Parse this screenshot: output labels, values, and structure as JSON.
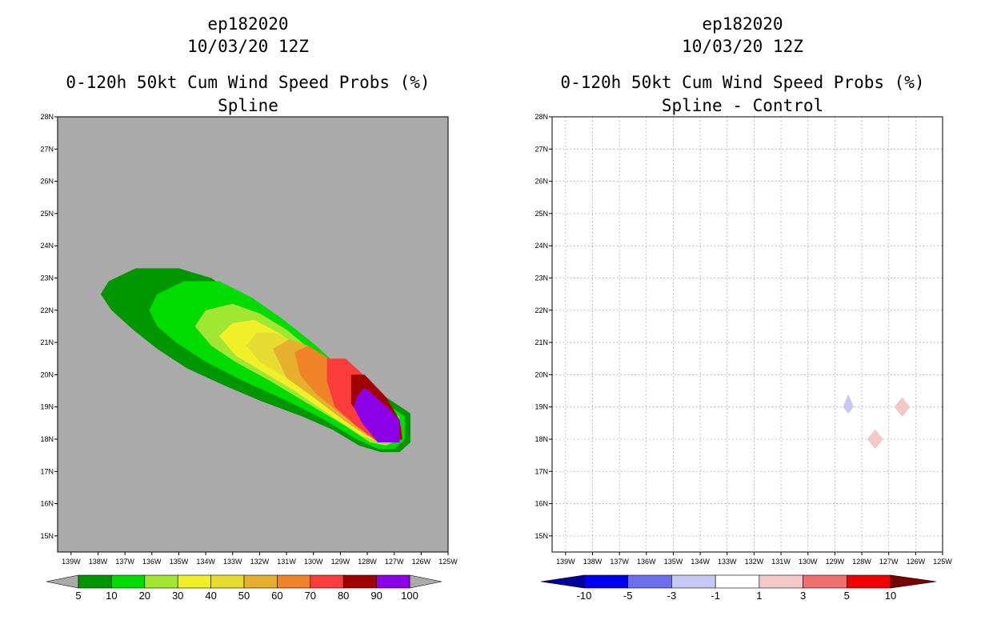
{
  "chart_data": [
    {
      "type": "contour",
      "storm_id": "ep182020",
      "datetime": "10/03/20 12Z",
      "title": "0-120h 50kt Cum Wind Speed Probs (%)",
      "subtitle": "Spline",
      "xlabel": "",
      "ylabel": "",
      "xlim": [
        -139.5,
        -125
      ],
      "ylim": [
        14.5,
        28
      ],
      "x_ticks": [
        "139W",
        "138W",
        "137W",
        "136W",
        "135W",
        "134W",
        "133W",
        "132W",
        "131W",
        "130W",
        "129W",
        "128W",
        "127W",
        "126W",
        "125W"
      ],
      "y_ticks": [
        "15N",
        "16N",
        "17N",
        "18N",
        "19N",
        "20N",
        "21N",
        "22N",
        "23N",
        "24N",
        "25N",
        "26N",
        "27N",
        "28N"
      ],
      "background_color": "#aaaaaa",
      "grid": false,
      "colorbar": {
        "labels": [
          "5",
          "10",
          "20",
          "30",
          "40",
          "50",
          "60",
          "70",
          "80",
          "90",
          "100"
        ],
        "colors": [
          "#009600",
          "#00dc00",
          "#a0e632",
          "#f0f028",
          "#e6dc32",
          "#e6af2d",
          "#f08228",
          "#fa3c3c",
          "#a00000",
          "#8c00e6"
        ],
        "arrow_left": "#aaaaaa",
        "arrow_right": "#aaaaaa"
      },
      "contours": [
        {
          "level": 5,
          "color": "#009600",
          "points": [
            [
              -137.9,
              22.5
            ],
            [
              -137.6,
              22.9
            ],
            [
              -136.6,
              23.3
            ],
            [
              -135.0,
              23.3
            ],
            [
              -133.8,
              23.0
            ],
            [
              -132.7,
              22.4
            ],
            [
              -131.4,
              21.6
            ],
            [
              -130.0,
              20.8
            ],
            [
              -128.7,
              20.0
            ],
            [
              -127.3,
              19.3
            ],
            [
              -126.4,
              18.8
            ],
            [
              -126.4,
              17.9
            ],
            [
              -126.8,
              17.6
            ],
            [
              -127.5,
              17.6
            ],
            [
              -128.3,
              17.8
            ],
            [
              -129.3,
              18.3
            ],
            [
              -130.4,
              18.7
            ],
            [
              -132.0,
              19.2
            ],
            [
              -133.4,
              19.7
            ],
            [
              -134.7,
              20.2
            ],
            [
              -135.8,
              20.8
            ],
            [
              -136.7,
              21.4
            ],
            [
              -137.5,
              22.0
            ]
          ]
        },
        {
          "level": 10,
          "color": "#00dc00",
          "points": [
            [
              -136.1,
              22.0
            ],
            [
              -135.8,
              22.5
            ],
            [
              -134.8,
              22.9
            ],
            [
              -133.5,
              22.9
            ],
            [
              -132.3,
              22.4
            ],
            [
              -131.1,
              21.7
            ],
            [
              -129.9,
              20.9
            ],
            [
              -128.6,
              19.9
            ],
            [
              -127.3,
              19.1
            ],
            [
              -126.6,
              18.7
            ],
            [
              -126.6,
              18.0
            ],
            [
              -127.0,
              17.7
            ],
            [
              -127.6,
              17.7
            ],
            [
              -128.4,
              18.0
            ],
            [
              -129.6,
              18.6
            ],
            [
              -131.0,
              19.2
            ],
            [
              -132.6,
              19.8
            ],
            [
              -134.0,
              20.4
            ],
            [
              -135.1,
              21.0
            ],
            [
              -135.8,
              21.5
            ]
          ]
        },
        {
          "level": 20,
          "color": "#a0e632",
          "points": [
            [
              -134.4,
              21.5
            ],
            [
              -134.0,
              22.0
            ],
            [
              -133.0,
              22.2
            ],
            [
              -132.0,
              21.9
            ],
            [
              -131.0,
              21.4
            ],
            [
              -130.0,
              20.7
            ],
            [
              -128.9,
              19.9
            ],
            [
              -127.7,
              19.2
            ],
            [
              -126.8,
              18.7
            ],
            [
              -126.8,
              18.0
            ],
            [
              -127.3,
              17.8
            ],
            [
              -127.9,
              17.9
            ],
            [
              -128.8,
              18.4
            ],
            [
              -130.2,
              19.1
            ],
            [
              -131.6,
              19.8
            ],
            [
              -132.9,
              20.4
            ],
            [
              -133.8,
              20.9
            ]
          ]
        },
        {
          "level": 30,
          "color": "#f0f028",
          "points": [
            [
              -133.5,
              21.2
            ],
            [
              -133.0,
              21.6
            ],
            [
              -132.2,
              21.7
            ],
            [
              -131.3,
              21.3
            ],
            [
              -130.3,
              20.7
            ],
            [
              -129.2,
              19.9
            ],
            [
              -128.0,
              19.2
            ],
            [
              -127.0,
              18.6
            ],
            [
              -127.0,
              18.0
            ],
            [
              -127.5,
              17.9
            ],
            [
              -128.2,
              18.1
            ],
            [
              -129.3,
              18.7
            ],
            [
              -130.7,
              19.5
            ],
            [
              -131.9,
              20.1
            ],
            [
              -132.9,
              20.6
            ]
          ]
        },
        {
          "level": 40,
          "color": "#e6dc32",
          "points": [
            [
              -132.5,
              20.9
            ],
            [
              -132.1,
              21.3
            ],
            [
              -131.4,
              21.3
            ],
            [
              -130.6,
              20.9
            ],
            [
              -129.6,
              20.2
            ],
            [
              -128.5,
              19.5
            ],
            [
              -127.4,
              18.9
            ],
            [
              -127.2,
              18.1
            ],
            [
              -127.8,
              18.0
            ],
            [
              -128.6,
              18.4
            ],
            [
              -129.8,
              19.2
            ],
            [
              -131.0,
              19.9
            ],
            [
              -132.0,
              20.4
            ]
          ]
        },
        {
          "level": 50,
          "color": "#e6af2d",
          "points": [
            [
              -131.5,
              20.8
            ],
            [
              -130.9,
              21.1
            ],
            [
              -130.2,
              20.9
            ],
            [
              -129.3,
              20.3
            ],
            [
              -128.4,
              19.6
            ],
            [
              -127.4,
              18.9
            ],
            [
              -127.3,
              18.1
            ],
            [
              -128.0,
              18.1
            ],
            [
              -128.9,
              18.6
            ],
            [
              -130.0,
              19.3
            ],
            [
              -131.0,
              19.9
            ]
          ]
        },
        {
          "level": 60,
          "color": "#f08228",
          "points": [
            [
              -130.7,
              20.7
            ],
            [
              -130.2,
              20.9
            ],
            [
              -129.6,
              20.6
            ],
            [
              -128.8,
              20.0
            ],
            [
              -127.9,
              19.3
            ],
            [
              -127.3,
              18.6
            ],
            [
              -127.4,
              18.1
            ],
            [
              -128.1,
              18.2
            ],
            [
              -129.0,
              18.8
            ],
            [
              -129.9,
              19.4
            ],
            [
              -130.5,
              20.0
            ]
          ]
        },
        {
          "level": 70,
          "color": "#fa3c3c",
          "points": [
            [
              -129.5,
              20.5
            ],
            [
              -128.8,
              20.5
            ],
            [
              -127.9,
              19.8
            ],
            [
              -127.1,
              19.0
            ],
            [
              -126.7,
              18.3
            ],
            [
              -126.8,
              17.9
            ],
            [
              -127.6,
              17.9
            ],
            [
              -128.4,
              18.4
            ],
            [
              -129.2,
              19.0
            ],
            [
              -129.5,
              19.8
            ]
          ]
        },
        {
          "level": 80,
          "color": "#a00000",
          "points": [
            [
              -128.6,
              20.0
            ],
            [
              -128.1,
              20.0
            ],
            [
              -127.3,
              19.3
            ],
            [
              -126.8,
              18.6
            ],
            [
              -126.7,
              18.0
            ],
            [
              -127.4,
              17.9
            ],
            [
              -128.0,
              18.4
            ],
            [
              -128.6,
              19.1
            ]
          ]
        },
        {
          "level": 90,
          "color": "#8c00e6",
          "points": [
            [
              -128.4,
              19.3
            ],
            [
              -128.1,
              19.6
            ],
            [
              -127.4,
              19.1
            ],
            [
              -126.8,
              18.6
            ],
            [
              -126.8,
              17.9
            ],
            [
              -127.6,
              17.9
            ],
            [
              -128.2,
              18.5
            ],
            [
              -128.5,
              19.0
            ]
          ]
        }
      ]
    },
    {
      "type": "contour",
      "storm_id": "ep182020",
      "datetime": "10/03/20 12Z",
      "title": "0-120h 50kt Cum Wind Speed Probs (%)",
      "subtitle": "Spline - Control",
      "xlabel": "",
      "ylabel": "",
      "xlim": [
        -139.5,
        -125
      ],
      "ylim": [
        14.5,
        28
      ],
      "x_ticks": [
        "139W",
        "138W",
        "137W",
        "136W",
        "135W",
        "134W",
        "133W",
        "132W",
        "131W",
        "130W",
        "129W",
        "128W",
        "127W",
        "126W",
        "125W"
      ],
      "y_ticks": [
        "15N",
        "16N",
        "17N",
        "18N",
        "19N",
        "20N",
        "21N",
        "22N",
        "23N",
        "24N",
        "25N",
        "26N",
        "27N",
        "28N"
      ],
      "background_color": "#ffffff",
      "grid": true,
      "colorbar": {
        "labels": [
          "-10",
          "-5",
          "-3",
          "-1",
          "1",
          "3",
          "5",
          "10"
        ],
        "colors": [
          "#0000f0",
          "#6e6ef0",
          "#c8c8f5",
          "#ffffff",
          "#f5c8c8",
          "#f06e6e",
          "#f00000"
        ],
        "arrow_left": "#00009b",
        "arrow_right": "#780000"
      },
      "contours": [
        {
          "level": -3,
          "color": "#c8c8f5",
          "points": [
            [
              -128.5,
              19.4
            ],
            [
              -128.3,
              19.0
            ],
            [
              -128.5,
              18.8
            ],
            [
              -128.7,
              19.0
            ]
          ]
        },
        {
          "level": 3,
          "color": "#f5c8c8",
          "points": [
            [
              -127.5,
              18.3
            ],
            [
              -127.2,
              18.0
            ],
            [
              -127.5,
              17.7
            ],
            [
              -127.8,
              18.0
            ]
          ]
        },
        {
          "level": 3,
          "color": "#f5c8c8",
          "points": [
            [
              -126.5,
              19.3
            ],
            [
              -126.2,
              19.0
            ],
            [
              -126.5,
              18.7
            ],
            [
              -126.8,
              19.0
            ]
          ]
        }
      ]
    }
  ]
}
